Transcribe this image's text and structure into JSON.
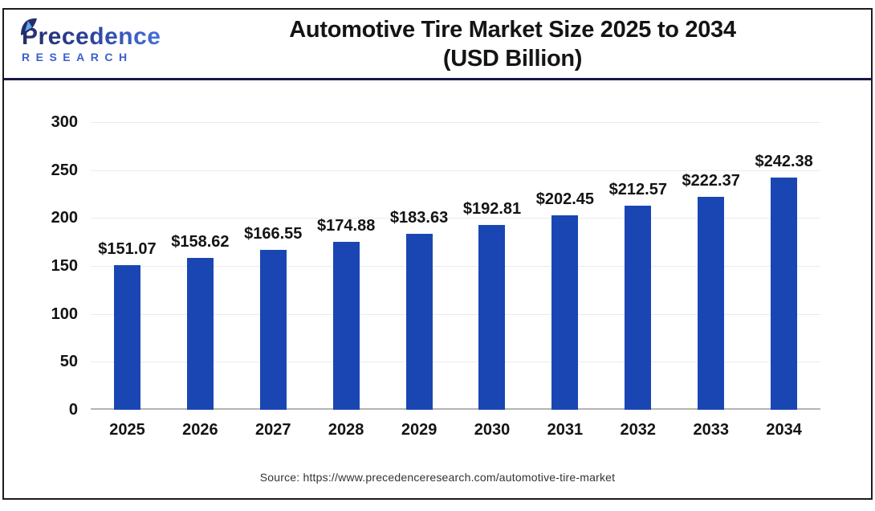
{
  "logo": {
    "line1": "Precedence",
    "line2": "RESEARCH"
  },
  "title": {
    "line1": "Automotive Tire Market Size 2025 to 2034",
    "line2": "(USD Billion)"
  },
  "source": "Source: https://www.precedenceresearch.com/automotive-tire-market",
  "colors": {
    "bar": "#1a46b4",
    "grid": "#eaeaea",
    "axis_line": "#b4b4b4",
    "header_divider": "#191946",
    "frame_border": "#1c1c1c",
    "logo_dark": "#232e6b",
    "logo_light": "#4472da",
    "research_blue": "#3c60cc",
    "text": "#141414"
  },
  "chart_data": {
    "type": "bar",
    "title": "Automotive Tire Market Size 2025 to 2034 (USD Billion)",
    "categories": [
      "2025",
      "2026",
      "2027",
      "2028",
      "2029",
      "2030",
      "2031",
      "2032",
      "2033",
      "2034"
    ],
    "values": [
      151.07,
      158.62,
      166.55,
      174.88,
      183.63,
      192.81,
      202.45,
      212.57,
      222.37,
      242.38
    ],
    "value_labels": [
      "$151.07",
      "$158.62",
      "$166.55",
      "$174.88",
      "$183.63",
      "$192.81",
      "$202.45",
      "$212.57",
      "$222.37",
      "$242.38"
    ],
    "xlabel": "",
    "ylabel": "",
    "ylim": [
      0,
      300
    ],
    "yticks": [
      0,
      50,
      100,
      150,
      200,
      250,
      300
    ],
    "grid": "horizontal",
    "legend": "none",
    "bar_color": "#1a46b4"
  }
}
